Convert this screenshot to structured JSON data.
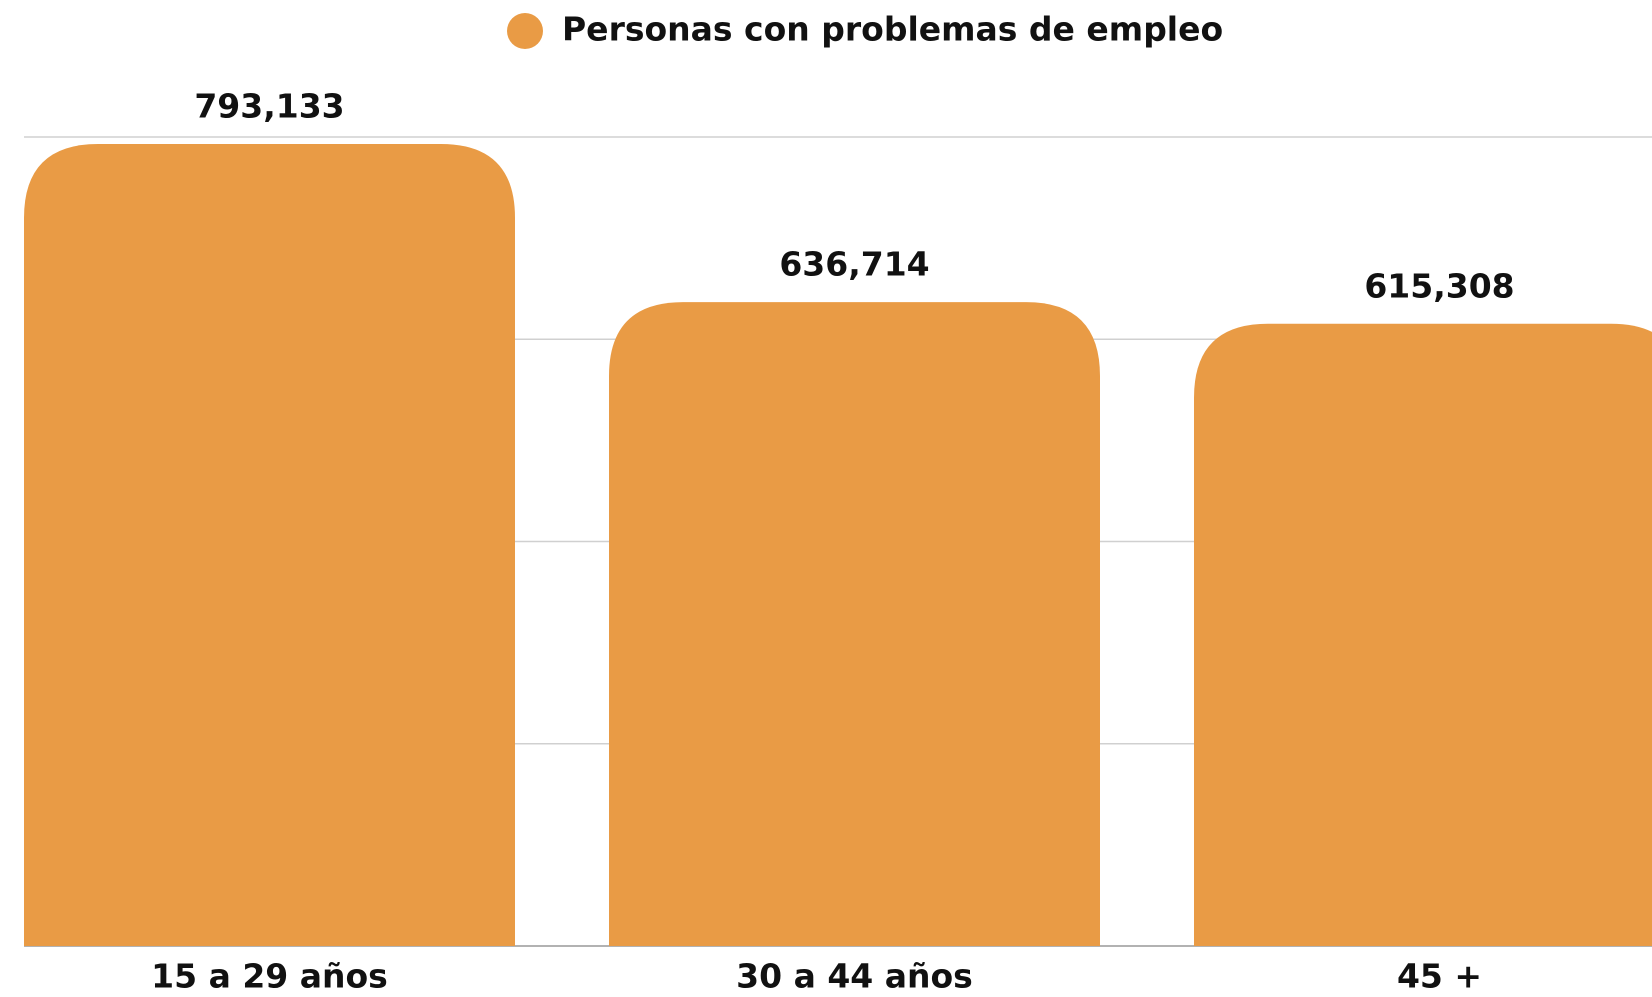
{
  "chart_data": {
    "type": "bar",
    "categories": [
      "15 a 29 años",
      "30 a 44 años",
      "45 +"
    ],
    "series": [
      {
        "name": "Personas con problemas de empleo",
        "color": "#e99b45",
        "values": [
          793133,
          636714,
          615308
        ],
        "value_labels": [
          "793,133",
          "636,714",
          "615,308"
        ]
      }
    ],
    "ylim": [
      0,
      800000
    ],
    "yticks": [
      0,
      200000,
      400000,
      600000,
      800000
    ],
    "grid": true
  }
}
